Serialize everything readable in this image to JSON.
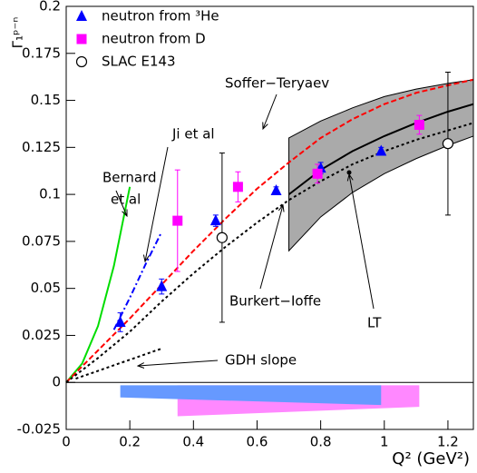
{
  "chart_data": {
    "type": "scatter",
    "x_label": "Q² (GeV²)",
    "y_label": "Γ₁ᵖ⁻ⁿ",
    "xlim": [
      0,
      1.28
    ],
    "ylim": [
      -0.025,
      0.2
    ],
    "xticks": [
      0,
      0.2,
      0.4,
      0.6,
      0.8,
      1,
      1.2
    ],
    "yticks": [
      -0.025,
      0,
      0.025,
      0.05,
      0.075,
      0.1,
      0.125,
      0.15,
      0.175,
      0.2
    ],
    "series": [
      {
        "name": "neutron from ³He",
        "type": "scatter",
        "marker": "triangle",
        "color": "#0000ff",
        "x": [
          0.17,
          0.3,
          0.47,
          0.66,
          0.8,
          0.99
        ],
        "values": [
          0.032,
          0.051,
          0.086,
          0.102,
          0.114,
          0.123
        ],
        "errors": [
          0.005,
          0.004,
          0.003,
          0.002,
          0.003,
          0.002
        ]
      },
      {
        "name": "neutron from D",
        "type": "scatter",
        "marker": "square",
        "color": "#ff00ff",
        "x": [
          0.35,
          0.54,
          0.79,
          1.11
        ],
        "values": [
          0.086,
          0.104,
          0.111,
          0.137
        ],
        "errors": [
          0.027,
          0.008,
          0.005,
          0.005
        ]
      },
      {
        "name": "SLAC E143",
        "type": "scatter",
        "marker": "circle",
        "color": "#000000",
        "x": [
          0.49,
          1.2
        ],
        "values": [
          0.077,
          0.127
        ],
        "errors": [
          0.045,
          0.038
        ]
      }
    ],
    "curves": [
      {
        "type": "band",
        "color": "#aaaaaa",
        "x": [
          0.7,
          0.8,
          0.9,
          1.0,
          1.1,
          1.2,
          1.28
        ],
        "upper": [
          0.13,
          0.139,
          0.146,
          0.152,
          0.156,
          0.159,
          0.161
        ],
        "lower": [
          0.07,
          0.088,
          0.101,
          0.111,
          0.119,
          0.126,
          0.131
        ]
      },
      {
        "type": "line",
        "style": "solid",
        "color": "#000000",
        "x": [
          0.7,
          0.8,
          0.9,
          1.0,
          1.1,
          1.2,
          1.28
        ],
        "values": [
          0.1,
          0.113,
          0.123,
          0.131,
          0.138,
          0.144,
          0.148
        ]
      },
      {
        "type": "band",
        "color": "#ff88ff",
        "x": [
          0.35,
          1.11
        ],
        "upper": [
          -0.0015,
          -0.0015
        ],
        "lower": [
          -0.018,
          -0.013
        ]
      },
      {
        "type": "band",
        "color": "#6699ff",
        "x": [
          0.17,
          0.99
        ],
        "upper": [
          -0.0015,
          -0.0015
        ],
        "lower": [
          -0.008,
          -0.012
        ]
      },
      {
        "type": "line",
        "style": "solid",
        "color": "#00dd00",
        "x": [
          0,
          0.05,
          0.1,
          0.15,
          0.2
        ],
        "values": [
          0,
          0.01,
          0.03,
          0.062,
          0.104
        ]
      },
      {
        "type": "line",
        "style": "dashdot",
        "color": "#0000ff",
        "x": [
          0.15,
          0.2,
          0.25,
          0.3
        ],
        "values": [
          0.028,
          0.045,
          0.063,
          0.08
        ]
      },
      {
        "type": "line",
        "style": "dashed",
        "color": "#ff0000",
        "x": [
          0,
          0.1,
          0.2,
          0.3,
          0.4,
          0.5,
          0.6,
          0.7,
          0.8,
          0.9,
          1.0,
          1.1,
          1.2,
          1.28
        ],
        "values": [
          0,
          0.017,
          0.034,
          0.052,
          0.07,
          0.087,
          0.103,
          0.117,
          0.13,
          0.14,
          0.148,
          0.154,
          0.158,
          0.161
        ]
      },
      {
        "type": "line",
        "style": "dotted",
        "color": "#000000",
        "x": [
          0,
          0.1,
          0.2,
          0.3,
          0.4,
          0.5,
          0.6,
          0.7,
          0.8,
          0.9,
          1.0,
          1.1,
          1.2,
          1.28
        ],
        "values": [
          0,
          0.013,
          0.027,
          0.043,
          0.058,
          0.072,
          0.085,
          0.097,
          0.107,
          0.116,
          0.123,
          0.129,
          0.134,
          0.138
        ]
      },
      {
        "type": "line",
        "style": "dotted",
        "color": "#000000",
        "x": [
          0.03,
          0.3
        ],
        "values": [
          0.002,
          0.018
        ]
      }
    ],
    "annotations": [
      "Soffer−Teryaev",
      "Ji et al",
      "Bernard",
      "et al",
      "Burkert−Ioffe",
      "LT",
      "GDH slope"
    ]
  }
}
